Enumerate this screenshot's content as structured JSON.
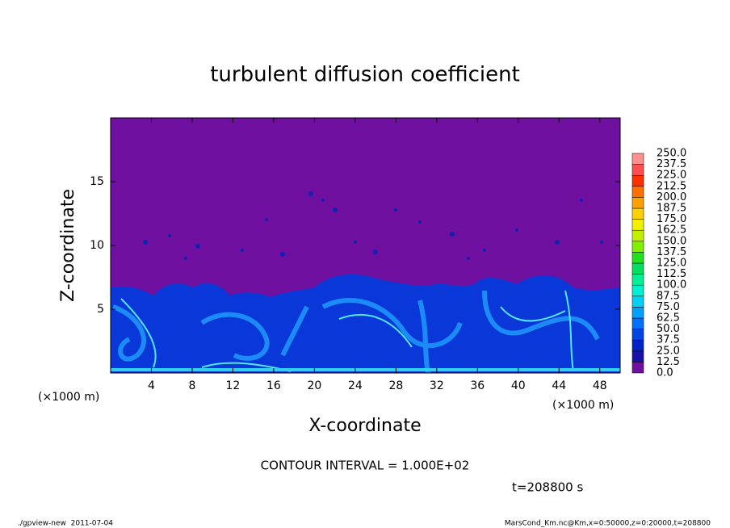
{
  "chart_data": {
    "type": "contour",
    "title": "turbulent diffusion coefficient",
    "xlabel": "X-coordinate",
    "ylabel": "Z-coordinate",
    "x_unit": "(×1000 m)",
    "xlim": [
      0,
      50
    ],
    "xticks": [
      4,
      8,
      12,
      16,
      20,
      24,
      28,
      32,
      36,
      40,
      44,
      48
    ],
    "ylim": [
      0,
      20
    ],
    "yticks": [
      5,
      10,
      15
    ],
    "colorbar": {
      "levels": [
        {
          "value": 0,
          "label": "0.0"
        },
        12.5,
        {
          "value": 25,
          "label": "25.0"
        },
        37.5,
        {
          "value": 50,
          "label": "50.0"
        },
        62.5,
        {
          "value": 75,
          "label": "75.0"
        },
        87.5,
        {
          "value": 100,
          "label": "100.0"
        },
        112.5,
        {
          "value": 125,
          "label": "125.0"
        },
        137.5,
        {
          "value": 150,
          "label": "150.0"
        },
        162.5,
        {
          "value": 175,
          "label": "175.0"
        },
        187.5,
        {
          "value": 200,
          "label": "200.0"
        },
        212.5,
        {
          "value": 225,
          "label": "225.0"
        },
        237.5,
        {
          "value": 250,
          "label": "250.0"
        }
      ],
      "colors": [
        "#7010a0",
        "#1810a8",
        "#0024c8",
        "#0044e4",
        "#0070ff",
        "#00a0ff",
        "#00d0f4",
        "#00f0d4",
        "#00f098",
        "#00e060",
        "#20e020",
        "#80f000",
        "#c0f000",
        "#f0f000",
        "#ffd000",
        "#ffa000",
        "#ff7000",
        "#ff3000",
        "#ff5050",
        "#ff9090"
      ]
    },
    "contour_interval": "CONTOUR INTERVAL = 1.000E+02",
    "time_label": "t=208800 s",
    "footer_left": "./gpview-new  2011-07-04",
    "footer_right": "MarsCond_Km.nc@Km,x=0:50000,z=0:20000,t=208800"
  }
}
